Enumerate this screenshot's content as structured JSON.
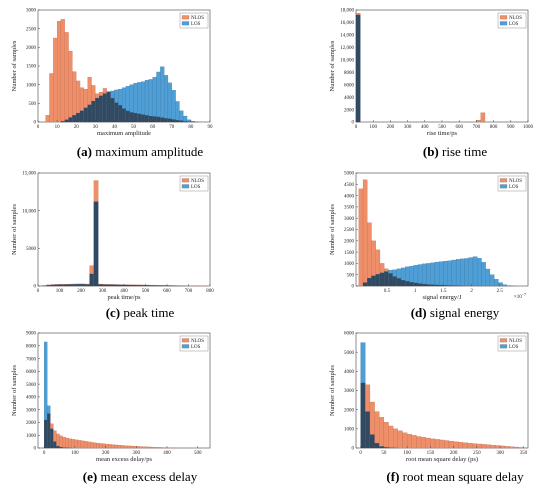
{
  "colors": {
    "nlos": "#ef8f6a",
    "los": "#4f9fd6",
    "overlap": "#2b3a4c"
  },
  "chart_data": [
    {
      "type": "bar",
      "caption_label": "(a)",
      "caption_text": " maximum amplitude",
      "xlabel": "maximum amplitude",
      "ylabel": "Number of samples",
      "xlim": [
        0,
        90
      ],
      "ylim": [
        0,
        3000
      ],
      "xticks": [
        0,
        10,
        20,
        30,
        40,
        50,
        60,
        70,
        80,
        90
      ],
      "yticks": [
        0,
        500,
        1000,
        1500,
        2000,
        2500,
        3000
      ],
      "bin_start": 4,
      "bin_width": 2,
      "series": [
        {
          "name": "NLOS",
          "values": [
            180,
            1300,
            2250,
            2700,
            2750,
            2400,
            1900,
            1350,
            1100,
            920,
            880,
            1200,
            980,
            760,
            800,
            900,
            820,
            640,
            520,
            450,
            360,
            300,
            260,
            240,
            220,
            200,
            180,
            160,
            150,
            140,
            120,
            100,
            90,
            70,
            50,
            40,
            20,
            10,
            5,
            0,
            0
          ]
        },
        {
          "name": "LOS",
          "values": [
            0,
            0,
            0,
            0,
            20,
            60,
            120,
            180,
            240,
            300,
            380,
            460,
            560,
            640,
            700,
            760,
            800,
            830,
            860,
            880,
            920,
            960,
            1000,
            1040,
            1060,
            1080,
            1120,
            1140,
            1200,
            1340,
            1480,
            1250,
            1050,
            850,
            550,
            300,
            160,
            60,
            20,
            5,
            0
          ]
        }
      ],
      "legend": "top-right"
    },
    {
      "type": "bar",
      "caption_label": "(b)",
      "caption_text": " rise time",
      "xlabel": "rise time/ps",
      "ylabel": "Number of samples",
      "xlim": [
        0,
        1000
      ],
      "ylim": [
        0,
        18000
      ],
      "xticks": [
        0,
        100,
        200,
        300,
        400,
        500,
        600,
        700,
        800,
        900,
        1000
      ],
      "yticks": [
        0,
        2000,
        4000,
        6000,
        8000,
        10000,
        12000,
        14000,
        16000,
        18000
      ],
      "bin_start": 0,
      "bin_width": 25,
      "series": [
        {
          "name": "NLOS",
          "values": [
            17500,
            0,
            0,
            0,
            0,
            0,
            0,
            0,
            0,
            0,
            0,
            0,
            0,
            0,
            0,
            0,
            0,
            0,
            0,
            0,
            0,
            0,
            0,
            0,
            0,
            0,
            0,
            0,
            300,
            1500,
            0,
            0,
            0,
            0,
            0,
            0,
            0,
            0,
            0,
            0
          ]
        },
        {
          "name": "LOS",
          "values": [
            17200,
            0,
            0,
            0,
            0,
            0,
            0,
            0,
            0,
            0,
            0,
            0,
            0,
            0,
            0,
            0,
            0,
            0,
            0,
            0,
            0,
            0,
            0,
            0,
            0,
            0,
            0,
            0,
            0,
            0,
            0,
            0,
            0,
            0,
            0,
            0,
            0,
            0,
            0,
            0
          ]
        }
      ],
      "legend": "top-right"
    },
    {
      "type": "bar",
      "caption_label": "(c)",
      "caption_text": " peak time",
      "xlabel": "peak time/ps",
      "ylabel": "Number of samples",
      "xlim": [
        0,
        800
      ],
      "ylim": [
        0,
        15000
      ],
      "xticks": [
        0,
        100,
        200,
        300,
        400,
        500,
        600,
        700,
        800
      ],
      "yticks": [
        0,
        5000,
        10000,
        15000
      ],
      "bin_start": 0,
      "bin_width": 20,
      "series": [
        {
          "name": "NLOS",
          "values": [
            0,
            60,
            150,
            200,
            220,
            240,
            250,
            260,
            270,
            280,
            280,
            260,
            2700,
            14000,
            260,
            230,
            220,
            210,
            200,
            190,
            180,
            170,
            160,
            150,
            140,
            130,
            120,
            110,
            100,
            90,
            80,
            70,
            60,
            50,
            40,
            30,
            20,
            10,
            5,
            0
          ]
        },
        {
          "name": "LOS",
          "values": [
            0,
            40,
            100,
            140,
            160,
            180,
            190,
            200,
            210,
            220,
            220,
            200,
            1600,
            11200,
            200,
            180,
            170,
            160,
            150,
            140,
            130,
            120,
            110,
            100,
            90,
            80,
            70,
            60,
            50,
            40,
            30,
            20,
            10,
            5,
            2,
            0,
            0,
            0,
            0,
            0
          ]
        }
      ],
      "legend": "top-right"
    },
    {
      "type": "bar",
      "caption_label": "(d)",
      "caption_text": " signal energy",
      "xlabel": "signal energy/J",
      "ylabel": "Number of samples",
      "x_exponent": "×10",
      "x_exponent_power": "−7",
      "xlim": [
        -0.05,
        3
      ],
      "ylim": [
        0,
        5000
      ],
      "xticks": [
        0.5,
        1,
        1.5,
        2,
        2.5
      ],
      "xtick_labels": [
        "0.5",
        "1",
        "1.5",
        "2",
        "2.5"
      ],
      "yticks": [
        0,
        500,
        1000,
        1500,
        2000,
        2500,
        3000,
        3500,
        4000,
        4500,
        5000
      ],
      "bin_start": 0,
      "bin_width": 0.075,
      "series": [
        {
          "name": "NLOS",
          "values": [
            4300,
            4700,
            2800,
            2000,
            1600,
            1000,
            760,
            560,
            420,
            340,
            260,
            210,
            170,
            140,
            110,
            90,
            70,
            60,
            50,
            40,
            30,
            25,
            20,
            15,
            10,
            5,
            3,
            2,
            1,
            0,
            0,
            0,
            0,
            0,
            0,
            0,
            0,
            0
          ]
        },
        {
          "name": "LOS",
          "values": [
            0,
            150,
            350,
            450,
            520,
            580,
            640,
            700,
            720,
            760,
            800,
            850,
            880,
            920,
            950,
            980,
            1000,
            1030,
            1060,
            1080,
            1100,
            1120,
            1150,
            1180,
            1200,
            1220,
            1260,
            1300,
            1230,
            1050,
            750,
            500,
            300,
            150,
            60,
            20,
            5,
            0
          ]
        }
      ],
      "legend": "top-right"
    },
    {
      "type": "bar",
      "caption_label": "(e)",
      "caption_text": " mean excess delay",
      "xlabel": "mean excess delay/ps",
      "ylabel": "Number of samples",
      "xlim": [
        -20,
        540
      ],
      "ylim": [
        0,
        9000
      ],
      "xticks": [
        0,
        100,
        200,
        300,
        400,
        500
      ],
      "yticks": [
        0,
        1000,
        2000,
        3000,
        4000,
        5000,
        6000,
        7000,
        8000,
        9000
      ],
      "bin_start": 0,
      "bin_width": 10,
      "series": [
        {
          "name": "NLOS",
          "values": [
            2200,
            2700,
            1900,
            1350,
            1100,
            950,
            850,
            780,
            720,
            680,
            640,
            600,
            560,
            520,
            480,
            440,
            410,
            380,
            350,
            330,
            300,
            280,
            260,
            240,
            220,
            200,
            185,
            170,
            155,
            140,
            125,
            110,
            100,
            90,
            80,
            70,
            60,
            50,
            40,
            30,
            20,
            10,
            5,
            2,
            0,
            0,
            0,
            0,
            0,
            0
          ]
        },
        {
          "name": "LOS",
          "values": [
            8300,
            3300,
            1500,
            500,
            150,
            60,
            20,
            10,
            5,
            0,
            0,
            0,
            0,
            0,
            0,
            0,
            0,
            0,
            0,
            0,
            0,
            0,
            0,
            0,
            0,
            0,
            0,
            0,
            0,
            0,
            0,
            0,
            0,
            0,
            0,
            0,
            0,
            0,
            0,
            0,
            0,
            0,
            0,
            0,
            0,
            0,
            0,
            0,
            0,
            0
          ]
        }
      ],
      "legend": "top-right"
    },
    {
      "type": "bar",
      "caption_label": "(f)",
      "caption_text": " root mean square delay",
      "xlabel": "root mean square delay (ps)",
      "ylabel": "Number of samples",
      "xlim": [
        -10,
        360
      ],
      "ylim": [
        0,
        6000
      ],
      "xticks": [
        0,
        50,
        100,
        150,
        200,
        250,
        300,
        350
      ],
      "yticks": [
        0,
        1000,
        2000,
        3000,
        4000,
        5000,
        6000
      ],
      "bin_start": 0,
      "bin_width": 10,
      "series": [
        {
          "name": "NLOS",
          "legend_label": "NLOS",
          "values": [
            3400,
            3300,
            2400,
            1900,
            1600,
            1350,
            1150,
            1000,
            900,
            800,
            720,
            660,
            600,
            560,
            520,
            480,
            450,
            420,
            390,
            360,
            330,
            300,
            280,
            250,
            230,
            210,
            190,
            170,
            150,
            130,
            110,
            90,
            70,
            50,
            30,
            10
          ]
        },
        {
          "name": "LOS",
          "values": [
            5500,
            1900,
            700,
            250,
            80,
            30,
            10,
            5,
            0,
            0,
            0,
            0,
            0,
            0,
            0,
            0,
            0,
            0,
            0,
            0,
            0,
            0,
            0,
            0,
            0,
            0,
            0,
            0,
            0,
            0,
            0,
            0,
            0,
            0,
            0,
            0
          ]
        }
      ],
      "legend": "top-right"
    }
  ]
}
